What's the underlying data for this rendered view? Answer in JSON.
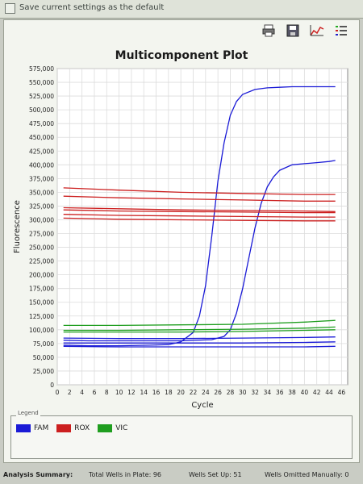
{
  "header": {
    "checkbox_label": "Save current settings as the default"
  },
  "toolbar": {
    "icons": [
      "print-icon",
      "save-image-icon",
      "chart-type-icon",
      "legend-list-icon"
    ]
  },
  "chart_data": {
    "type": "line",
    "title": "Multicomponent Plot",
    "xlabel": "Cycle",
    "ylabel": "Fluorescence",
    "xlim": [
      0,
      47
    ],
    "ylim": [
      0,
      575000
    ],
    "x_ticks": [
      "0",
      "2",
      "4",
      "6",
      "8",
      "10",
      "12",
      "14",
      "16",
      "18",
      "20",
      "22",
      "24",
      "26",
      "28",
      "30",
      "32",
      "34",
      "36",
      "38",
      "40",
      "42",
      "44",
      "46"
    ],
    "y_ticks": [
      "0",
      "25,000",
      "50,000",
      "75,000",
      "100,000",
      "125,000",
      "150,000",
      "175,000",
      "200,000",
      "225,000",
      "250,000",
      "275,000",
      "300,000",
      "325,000",
      "350,000",
      "375,000",
      "400,000",
      "425,000",
      "450,000",
      "475,000",
      "500,000",
      "525,000",
      "550,000",
      "575,000"
    ],
    "grid": true,
    "series": [
      {
        "name": "FAM",
        "color": "#1a1ad6",
        "x": [
          1,
          5,
          10,
          15,
          18,
          20,
          22,
          23,
          24,
          25,
          26,
          27,
          28,
          29,
          30,
          32,
          34,
          36,
          38,
          40,
          42,
          44,
          45
        ],
        "y": [
          72000,
          71000,
          71000,
          72000,
          73000,
          78000,
          95000,
          125000,
          180000,
          270000,
          370000,
          440000,
          490000,
          515000,
          528000,
          537000,
          540000,
          541000,
          542000,
          542000,
          542000,
          542000,
          542000
        ]
      },
      {
        "name": "FAM",
        "color": "#1a1ad6",
        "x": [
          1,
          5,
          10,
          15,
          20,
          25,
          27,
          28,
          29,
          30,
          31,
          32,
          33,
          34,
          35,
          36,
          38,
          40,
          42,
          44,
          45
        ],
        "y": [
          81000,
          80000,
          80000,
          80000,
          80000,
          82000,
          88000,
          100000,
          130000,
          175000,
          230000,
          285000,
          330000,
          360000,
          378000,
          390000,
          400000,
          402000,
          404000,
          406000,
          408000
        ]
      },
      {
        "name": "FAM",
        "color": "#1a1ad6",
        "x": [
          1,
          10,
          20,
          30,
          40,
          45
        ],
        "y": [
          76000,
          76000,
          76000,
          76000,
          77000,
          78000
        ]
      },
      {
        "name": "FAM",
        "color": "#1a1ad6",
        "x": [
          1,
          10,
          20,
          30,
          40,
          45
        ],
        "y": [
          70000,
          69000,
          69000,
          69000,
          69000,
          70000
        ]
      },
      {
        "name": "FAM",
        "color": "#1a1ad6",
        "x": [
          1,
          10,
          20,
          30,
          40,
          45
        ],
        "y": [
          85000,
          84000,
          84000,
          85000,
          86000,
          87000
        ]
      },
      {
        "name": "ROX",
        "color": "#cc1f1f",
        "x": [
          1,
          10,
          20,
          30,
          40,
          45
        ],
        "y": [
          358000,
          354000,
          350000,
          348000,
          346000,
          346000
        ]
      },
      {
        "name": "ROX",
        "color": "#cc1f1f",
        "x": [
          1,
          10,
          20,
          30,
          40,
          45
        ],
        "y": [
          343000,
          340000,
          338000,
          336000,
          334000,
          334000
        ]
      },
      {
        "name": "ROX",
        "color": "#cc1f1f",
        "x": [
          1,
          10,
          20,
          30,
          40,
          45
        ],
        "y": [
          322000,
          320000,
          318000,
          317000,
          316000,
          315000
        ]
      },
      {
        "name": "ROX",
        "color": "#cc1f1f",
        "x": [
          1,
          10,
          20,
          30,
          40,
          45
        ],
        "y": [
          318000,
          316000,
          315000,
          314000,
          313000,
          313000
        ]
      },
      {
        "name": "ROX",
        "color": "#cc1f1f",
        "x": [
          1,
          10,
          20,
          30,
          40,
          45
        ],
        "y": [
          310000,
          308000,
          307000,
          306000,
          305000,
          305000
        ]
      },
      {
        "name": "ROX",
        "color": "#cc1f1f",
        "x": [
          1,
          10,
          20,
          30,
          40,
          45
        ],
        "y": [
          303000,
          301000,
          300000,
          299000,
          298000,
          298000
        ]
      },
      {
        "name": "VIC",
        "color": "#1f9e1f",
        "x": [
          1,
          10,
          20,
          30,
          40,
          45
        ],
        "y": [
          108000,
          108000,
          109000,
          110000,
          114000,
          117000
        ]
      },
      {
        "name": "VIC",
        "color": "#1f9e1f",
        "x": [
          1,
          10,
          20,
          30,
          40,
          45
        ],
        "y": [
          99000,
          99000,
          100000,
          101000,
          103000,
          105000
        ]
      },
      {
        "name": "VIC",
        "color": "#1f9e1f",
        "x": [
          1,
          10,
          20,
          30,
          40,
          45
        ],
        "y": [
          96000,
          96000,
          96000,
          97000,
          99000,
          100000
        ]
      }
    ]
  },
  "legend": {
    "title": "Legend",
    "items": [
      {
        "label": "FAM",
        "color": "#1a1ad6"
      },
      {
        "label": "ROX",
        "color": "#cc1f1f"
      },
      {
        "label": "VIC",
        "color": "#1f9e1f"
      }
    ]
  },
  "summary": {
    "title": "Analysis Summary:",
    "total_wells": "Total Wells in Plate: 96",
    "wells_setup": "Wells Set Up: 51",
    "wells_omitted": "Wells Omitted Manually: 0"
  }
}
